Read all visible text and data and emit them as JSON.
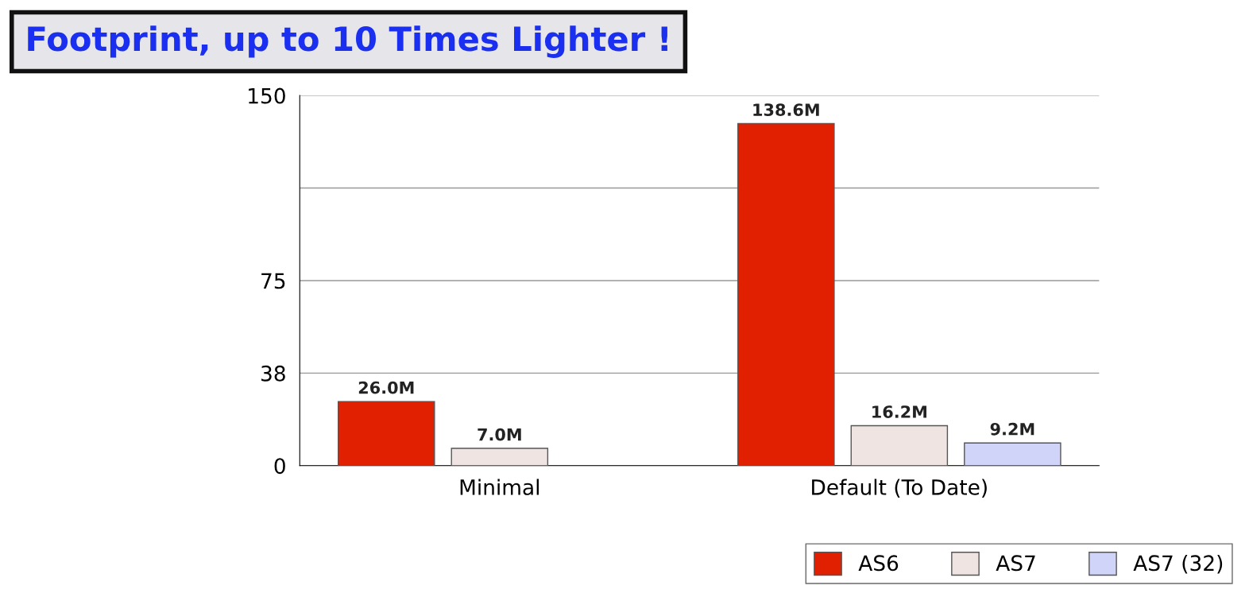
{
  "chart_data": {
    "type": "bar",
    "title": "Footprint, up to 10 Times Lighter !",
    "categories": [
      "Minimal",
      "Default (To Date)"
    ],
    "series": [
      {
        "name": "AS6",
        "color": "#e02000",
        "values": [
          26.0,
          138.6
        ],
        "value_labels": [
          "26.0M",
          "138.6M"
        ]
      },
      {
        "name": "AS7",
        "color": "#efe4e2",
        "values": [
          7.0,
          16.2
        ],
        "value_labels": [
          "7.0M",
          "16.2M"
        ]
      },
      {
        "name": "AS7 (32)",
        "color": "#d0d4f8",
        "values": [
          null,
          9.2
        ],
        "value_labels": [
          null,
          "9.2M"
        ]
      }
    ],
    "ylim": [
      0,
      150
    ],
    "yticks": [
      0,
      {
        "value": 37.5,
        "label": "38"
      },
      75,
      {
        "value": 112.5,
        "label": null
      },
      150
    ],
    "grid": "y",
    "legend": "bottom right"
  }
}
